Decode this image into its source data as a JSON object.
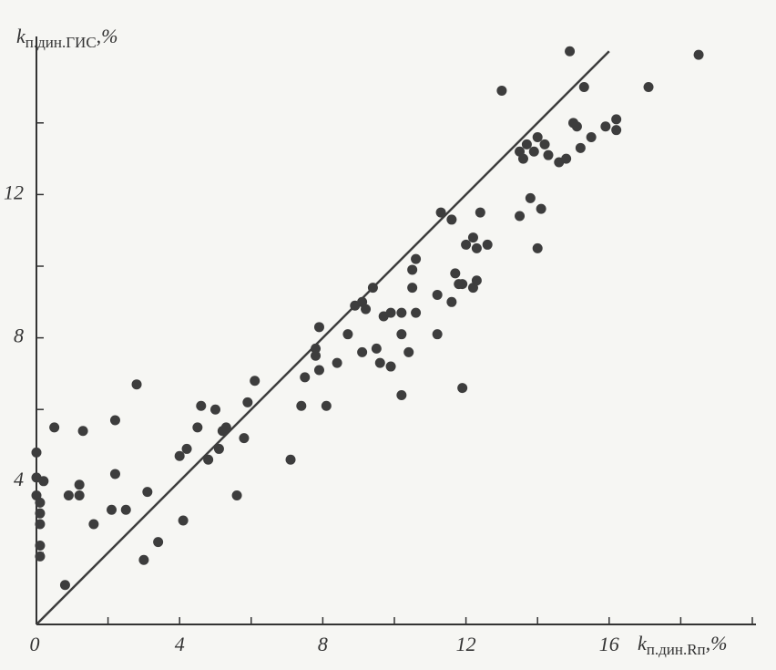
{
  "chart_data": {
    "type": "scatter",
    "xlabel": {
      "symbol": "k",
      "subscript": "п.дин.Rп",
      "unit": ",%"
    },
    "ylabel": {
      "symbol": "k",
      "subscript": "п.дин.ГИС",
      "unit": ",%"
    },
    "x": [
      0,
      0,
      0.2,
      0,
      0.1,
      0.1,
      0.1,
      0.1,
      0.1,
      0.5,
      0.8,
      0.9,
      1.2,
      1.2,
      1.3,
      1.6,
      2.1,
      2.2,
      2.2,
      2.5,
      2.8,
      3.0,
      3.1,
      3.4,
      4.0,
      4.2,
      4.1,
      4.5,
      4.6,
      4.8,
      5.0,
      5.1,
      5.2,
      5.3,
      5.6,
      5.8,
      5.9,
      6.1,
      7.1,
      7.4,
      7.5,
      7.8,
      7.8,
      7.9,
      7.9,
      8.1,
      8.4,
      8.7,
      8.9,
      9.1,
      9.1,
      9.2,
      9.4,
      9.5,
      9.6,
      9.7,
      9.9,
      9.9,
      10.2,
      10.2,
      10.2,
      10.4,
      10.5,
      10.5,
      10.6,
      10.6,
      11.2,
      11.2,
      11.3,
      11.6,
      11.7,
      11.6,
      11.8,
      11.9,
      11.9,
      12.0,
      12.2,
      12.2,
      12.3,
      12.3,
      12.4,
      12.6,
      13.0,
      13.5,
      13.5,
      13.6,
      13.7,
      13.8,
      13.9,
      14.0,
      14.0,
      14.1,
      14.2,
      14.3,
      14.6,
      14.8,
      14.9,
      15.0,
      15.1,
      15.2,
      15.3,
      15.5,
      15.9,
      16.2,
      16.2,
      17.1,
      18.5
    ],
    "y": [
      4.8,
      4.1,
      4.0,
      3.6,
      3.4,
      3.1,
      2.8,
      2.2,
      1.9,
      5.5,
      1.1,
      3.6,
      3.9,
      3.6,
      5.4,
      2.8,
      3.2,
      5.7,
      4.2,
      3.2,
      6.7,
      1.8,
      3.7,
      2.3,
      4.7,
      4.9,
      2.9,
      5.5,
      6.1,
      4.6,
      6.0,
      4.9,
      5.4,
      5.5,
      3.6,
      5.2,
      6.2,
      6.8,
      4.6,
      6.1,
      6.9,
      7.7,
      7.5,
      7.1,
      8.3,
      6.1,
      7.3,
      8.1,
      8.9,
      9.0,
      7.6,
      8.8,
      9.4,
      7.7,
      7.3,
      8.6,
      7.2,
      8.7,
      8.1,
      6.4,
      8.7,
      7.6,
      9.9,
      9.4,
      10.2,
      8.7,
      9.2,
      8.1,
      11.5,
      9.0,
      9.8,
      11.3,
      9.5,
      6.6,
      9.5,
      10.6,
      9.4,
      10.8,
      10.5,
      9.6,
      11.5,
      10.6,
      14.9,
      13.2,
      11.4,
      13.0,
      13.4,
      11.9,
      13.2,
      13.6,
      10.5,
      11.6,
      13.4,
      13.1,
      12.9,
      13.0,
      16.0,
      14.0,
      13.9,
      13.3,
      15.0,
      13.6,
      13.9,
      14.1,
      13.8,
      15.0,
      15.9
    ],
    "color": "#3d3d3d",
    "reference_line": {
      "x": [
        0,
        16
      ],
      "y": [
        0,
        16
      ],
      "color": "#3d3d3d"
    },
    "xlim": [
      0,
      20
    ],
    "ylim": [
      0,
      16.4
    ],
    "xticks": [
      0,
      4,
      8,
      12,
      16
    ],
    "yticks": [
      4,
      8,
      12
    ],
    "minor_xticks": [
      2,
      6,
      10,
      14,
      18,
      20
    ],
    "minor_yticks": [
      2,
      6,
      10,
      14
    ],
    "grid": false
  }
}
